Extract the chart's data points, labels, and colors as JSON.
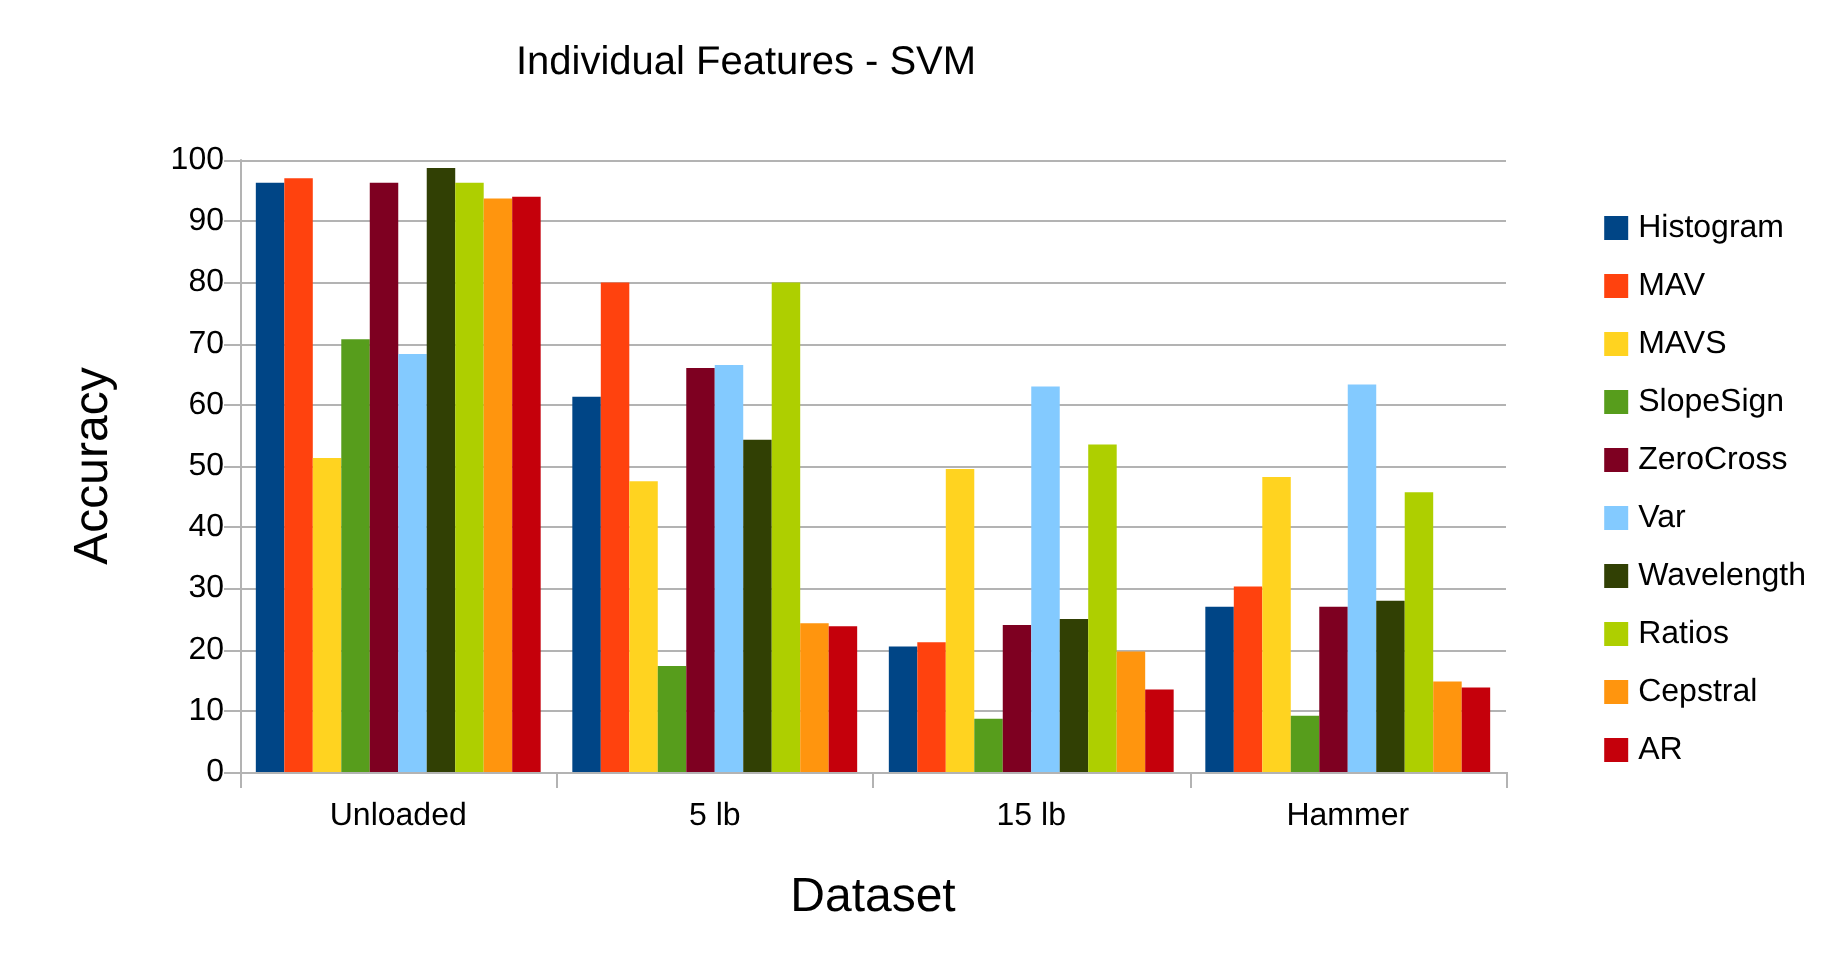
{
  "chart_data": {
    "type": "bar",
    "title": "Individual Features - SVM",
    "xlabel": "Dataset",
    "ylabel": "Accuracy",
    "categories": [
      "Unloaded",
      "5 lb",
      "15 lb",
      "Hammer"
    ],
    "series": [
      {
        "name": "Histogram",
        "color": "#004586",
        "values": [
          96.3,
          61.3,
          20.5,
          27
        ]
      },
      {
        "name": "MAV",
        "color": "#ff420e",
        "values": [
          97,
          80,
          21.2,
          30.3
        ]
      },
      {
        "name": "MAVS",
        "color": "#ffd320",
        "values": [
          51.3,
          47.5,
          49.5,
          48.2
        ]
      },
      {
        "name": "SlopeSign",
        "color": "#579d1c",
        "values": [
          70.7,
          17.3,
          8.7,
          9.2
        ]
      },
      {
        "name": "ZeroCross",
        "color": "#7e0021",
        "values": [
          96.3,
          66,
          24,
          27
        ]
      },
      {
        "name": "Var",
        "color": "#83caff",
        "values": [
          68.3,
          66.5,
          63,
          63.3
        ]
      },
      {
        "name": "Wavelength",
        "color": "#314004",
        "values": [
          98.7,
          54.3,
          25,
          28
        ]
      },
      {
        "name": "Ratios",
        "color": "#aecf00",
        "values": [
          96.3,
          80,
          53.5,
          45.7
        ]
      },
      {
        "name": "Cepstral",
        "color": "#ff950e",
        "values": [
          93.7,
          24.3,
          19.7,
          14.8
        ]
      },
      {
        "name": "AR",
        "color": "#c5000b",
        "values": [
          94,
          23.8,
          13.5,
          13.8
        ]
      }
    ],
    "ylim": [
      0,
      100
    ],
    "yticks": [
      0,
      10,
      20,
      30,
      40,
      50,
      60,
      70,
      80,
      90,
      100
    ],
    "grid": "y",
    "legend": "right"
  }
}
